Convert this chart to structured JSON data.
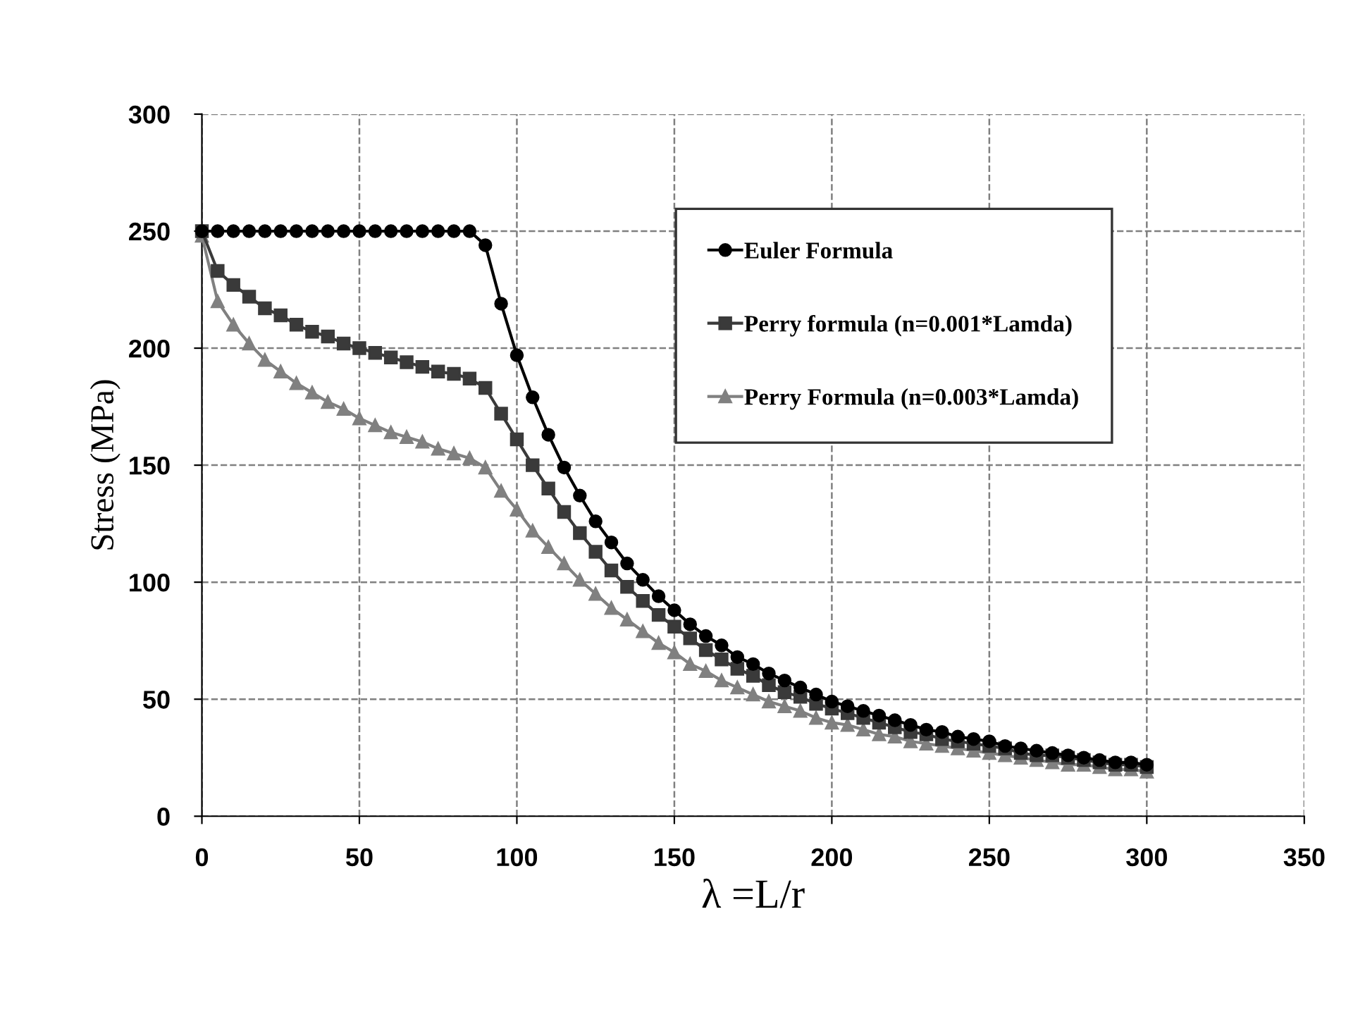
{
  "chart_data": {
    "type": "line",
    "xlabel": "λ =L/r",
    "ylabel": "Stress (MPa)",
    "x": [
      0,
      5,
      10,
      15,
      20,
      25,
      30,
      35,
      40,
      45,
      50,
      55,
      60,
      65,
      70,
      75,
      80,
      85,
      90,
      95,
      100,
      105,
      110,
      115,
      120,
      125,
      130,
      135,
      140,
      145,
      150,
      155,
      160,
      165,
      170,
      175,
      180,
      185,
      190,
      195,
      200,
      205,
      210,
      215,
      220,
      225,
      230,
      235,
      240,
      245,
      250,
      255,
      260,
      265,
      270,
      275,
      280,
      285,
      290,
      295,
      300
    ],
    "series": [
      {
        "name": "Euler Formula",
        "color": "#000000",
        "marker": "circle",
        "values": [
          250,
          250,
          250,
          250,
          250,
          250,
          250,
          250,
          250,
          250,
          250,
          250,
          250,
          250,
          250,
          250,
          250,
          250,
          244,
          219,
          197,
          179,
          163,
          149,
          137,
          126,
          117,
          108,
          101,
          94,
          88,
          82,
          77,
          73,
          68,
          65,
          61,
          58,
          55,
          52,
          49,
          47,
          45,
          43,
          41,
          39,
          37,
          36,
          34,
          33,
          32,
          30,
          29,
          28,
          27,
          26,
          25,
          24,
          23,
          23,
          22
        ]
      },
      {
        "name": "Perry formula (n=0.001*Lamda)",
        "color": "#3a3a3a",
        "marker": "square",
        "values": [
          250,
          233,
          227,
          222,
          217,
          214,
          210,
          207,
          205,
          202,
          200,
          198,
          196,
          194,
          192,
          190,
          189,
          187,
          183,
          172,
          161,
          150,
          140,
          130,
          121,
          113,
          105,
          98,
          92,
          86,
          81,
          76,
          71,
          67,
          63,
          60,
          56,
          53,
          51,
          48,
          46,
          44,
          42,
          40,
          38,
          36,
          35,
          33,
          32,
          31,
          30,
          29,
          27,
          26,
          26,
          25,
          24,
          23,
          22,
          22,
          21
        ]
      },
      {
        "name": "Perry Formula (n=0.003*Lamda)",
        "color": "#808080",
        "marker": "triangle",
        "values": [
          248,
          220,
          210,
          202,
          195,
          190,
          185,
          181,
          177,
          174,
          170,
          167,
          164,
          162,
          160,
          157,
          155,
          153,
          149,
          139,
          131,
          122,
          115,
          108,
          101,
          95,
          89,
          84,
          79,
          74,
          70,
          65,
          62,
          58,
          55,
          52,
          49,
          47,
          45,
          42,
          40,
          39,
          37,
          35,
          34,
          32,
          31,
          30,
          29,
          28,
          27,
          26,
          25,
          24,
          23,
          22,
          22,
          21,
          20,
          20,
          19
        ]
      }
    ],
    "xlim": [
      0,
      350
    ],
    "xticks": [
      0,
      50,
      100,
      150,
      200,
      250,
      300,
      350
    ],
    "ylim": [
      0,
      300
    ],
    "yticks": [
      0,
      50,
      100,
      150,
      200,
      250,
      300
    ],
    "grid": true,
    "legend": "top right",
    "line_style": "solid"
  }
}
